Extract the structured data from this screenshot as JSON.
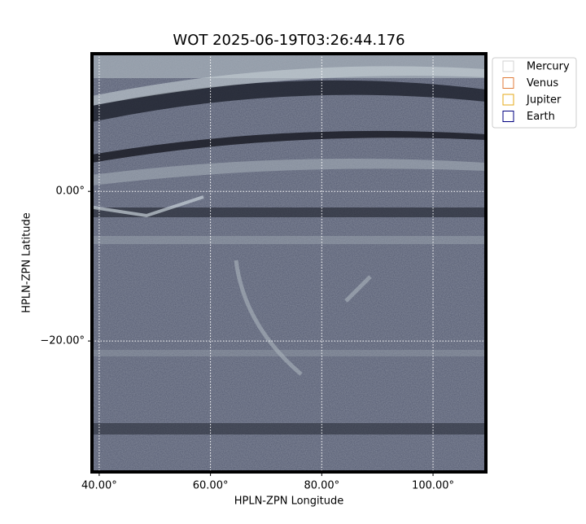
{
  "chart_data": {
    "type": "image",
    "title": "WOT 2025-06-19T03:26:44.176",
    "xlabel": "HPLN-ZPN Longitude",
    "ylabel": "HPLN-ZPN Latitude",
    "xlim": [
      38.7,
      109.5
    ],
    "ylim": [
      -37.5,
      18.4
    ],
    "xticks": [
      {
        "value": 40,
        "label": "40.00°"
      },
      {
        "value": 60,
        "label": "60.00°"
      },
      {
        "value": 80,
        "label": "80.00°"
      },
      {
        "value": 100,
        "label": "100.00°"
      }
    ],
    "yticks": [
      {
        "value": 0,
        "label": "0.00°"
      },
      {
        "value": -20,
        "label": "−20.00°"
      }
    ],
    "grid": true,
    "legend": "outside-right",
    "series": [
      {
        "name": "Mercury",
        "color": "#d3d3d3"
      },
      {
        "name": "Venus",
        "color": "#e07b39"
      },
      {
        "name": "Jupiter",
        "color": "#e6a817"
      },
      {
        "name": "Earth",
        "color": "#000080"
      }
    ]
  }
}
